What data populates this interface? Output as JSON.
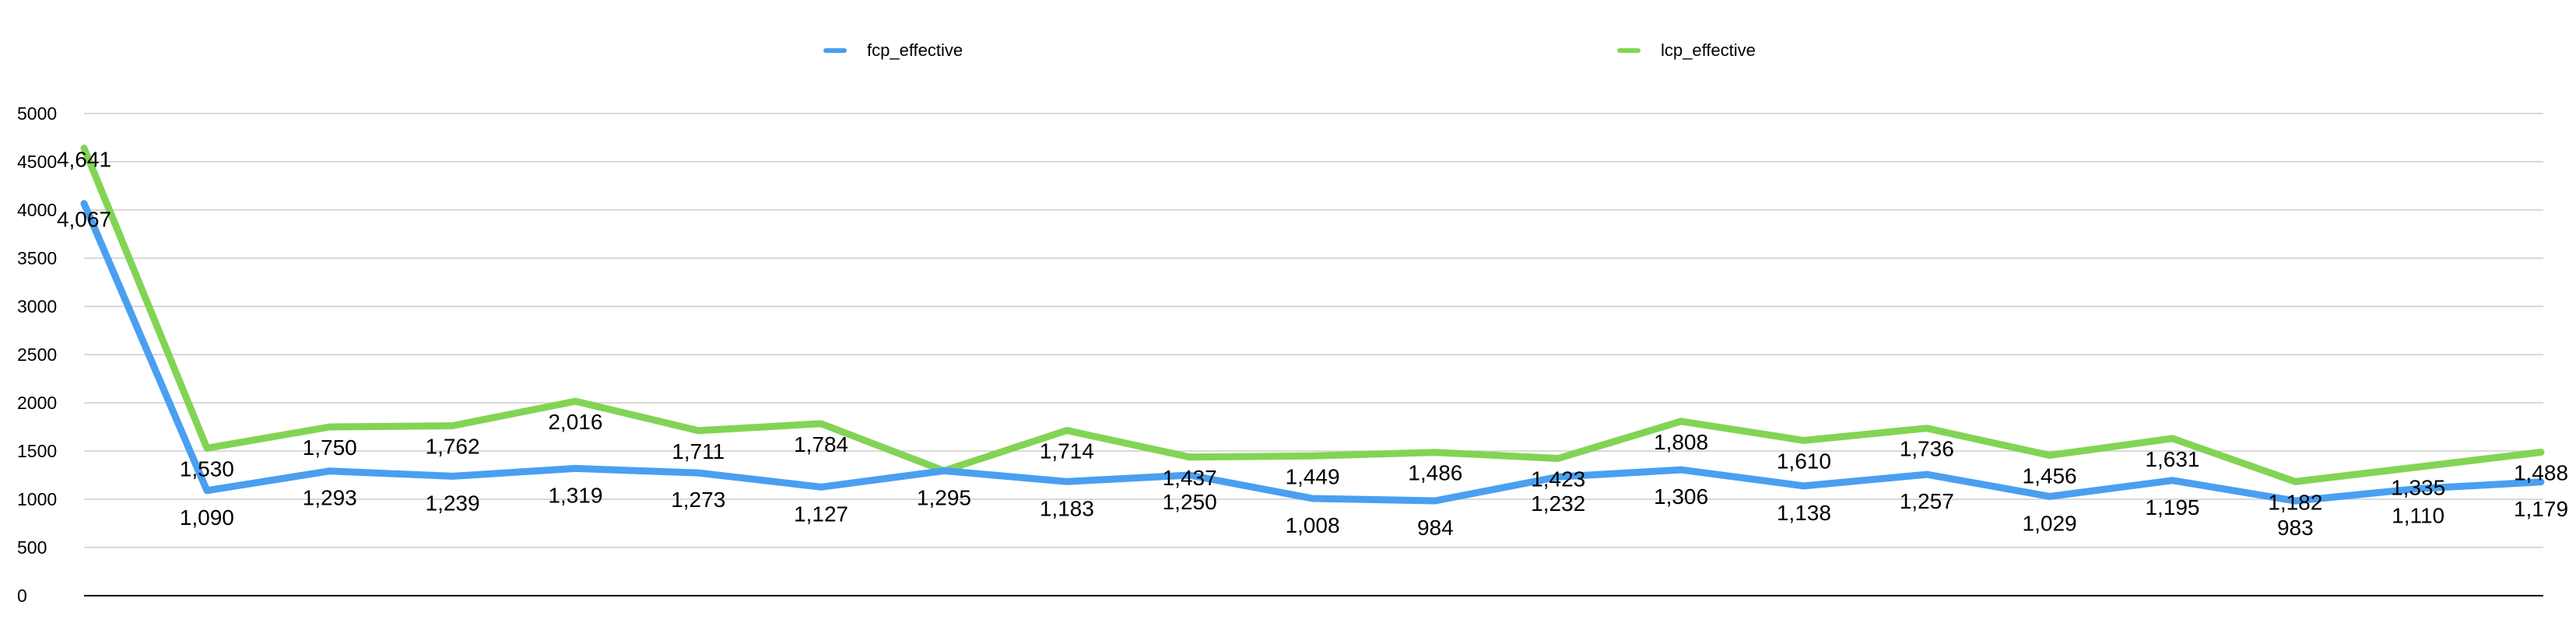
{
  "chart_data": {
    "type": "line",
    "title": "",
    "xlabel": "",
    "ylabel": "",
    "ylim": [
      0,
      5000
    ],
    "yticks": [
      0,
      500,
      1000,
      1500,
      2000,
      2500,
      3000,
      3500,
      4000,
      4500,
      5000
    ],
    "grid": true,
    "legend_position": "top",
    "series": [
      {
        "name": "fcp_effective",
        "color": "#4A9FF0",
        "values": [
          4067,
          1090,
          1293,
          1239,
          1319,
          1273,
          1127,
          1295,
          1183,
          1250,
          1008,
          984,
          1232,
          1306,
          1138,
          1257,
          1029,
          1195,
          983,
          1110,
          1179
        ],
        "labels": [
          "4,067",
          "1,090",
          "1,293",
          "1,239",
          "1,319",
          "1,273",
          "1,127",
          "1,295",
          "1,183",
          "1,250",
          "1,008",
          "984",
          "1,232",
          "1,306",
          "1,138",
          "1,257",
          "1,029",
          "1,195",
          "983",
          "1,110",
          "1,179"
        ]
      },
      {
        "name": "lcp_effective",
        "color": "#82D455",
        "values": [
          4641,
          1530,
          1750,
          1762,
          2016,
          1711,
          1784,
          1295,
          1714,
          1437,
          1449,
          1486,
          1423,
          1808,
          1610,
          1736,
          1456,
          1631,
          1182,
          1335,
          1488
        ],
        "labels": [
          "4,641",
          "1,530",
          "1,750",
          "1,762",
          "2,016",
          "1,711",
          "1,784",
          "",
          "1,714",
          "1,437",
          "1,449",
          "1,486",
          "1,423",
          "1,808",
          "1,610",
          "1,736",
          "1,456",
          "1,631",
          "1,182",
          "1,335",
          "1,488"
        ]
      }
    ]
  }
}
